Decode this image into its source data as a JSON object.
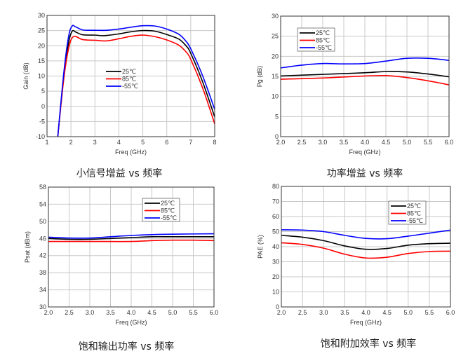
{
  "chart_data": [
    {
      "type": "line",
      "caption": "小信号增益 vs 频率",
      "xlabel": "Freq (GHz)",
      "ylabel": "Gain (dB)",
      "xlim": [
        1,
        8
      ],
      "ylim": [
        -10,
        30
      ],
      "xticks": [
        "1",
        "2",
        "3",
        "4",
        "5",
        "6",
        "7",
        "8"
      ],
      "yticks": [
        "-10",
        "-5",
        "0",
        "5",
        "10",
        "15",
        "20",
        "25",
        "30"
      ],
      "grid": true,
      "legend_box": false,
      "legend_placement": "center",
      "series": [
        {
          "name": "25℃",
          "color": "#000000",
          "points": [
            [
              1.45,
              -10
            ],
            [
              1.7,
              10
            ],
            [
              1.9,
              21
            ],
            [
              2.05,
              24.8
            ],
            [
              2.2,
              24.5
            ],
            [
              2.5,
              23.6
            ],
            [
              3,
              23.5
            ],
            [
              3.3,
              23.3
            ],
            [
              3.5,
              23.4
            ],
            [
              4,
              23.9
            ],
            [
              4.5,
              24.6
            ],
            [
              5,
              25
            ],
            [
              5.5,
              24.8
            ],
            [
              6,
              23.7
            ],
            [
              6.5,
              22.2
            ],
            [
              6.8,
              20
            ],
            [
              7,
              17.5
            ],
            [
              7.5,
              8
            ],
            [
              8,
              -3.5
            ]
          ]
        },
        {
          "name": "85℃",
          "color": "#ff0000",
          "points": [
            [
              1.45,
              -10
            ],
            [
              1.7,
              9
            ],
            [
              1.9,
              19
            ],
            [
              2.1,
              23
            ],
            [
              2.5,
              22
            ],
            [
              3,
              21.8
            ],
            [
              3.5,
              21.6
            ],
            [
              4,
              22.3
            ],
            [
              4.5,
              23.1
            ],
            [
              5,
              23.5
            ],
            [
              5.5,
              23
            ],
            [
              6,
              21.9
            ],
            [
              6.5,
              20.2
            ],
            [
              6.8,
              18
            ],
            [
              7,
              15.5
            ],
            [
              7.5,
              6
            ],
            [
              8,
              -5.8
            ]
          ]
        },
        {
          "name": "-55℃",
          "color": "#0000ff",
          "points": [
            [
              1.45,
              -10
            ],
            [
              1.7,
              11
            ],
            [
              1.9,
              23
            ],
            [
              2.05,
              26.5
            ],
            [
              2.2,
              26.2
            ],
            [
              2.5,
              25.2
            ],
            [
              3,
              25.1
            ],
            [
              3.5,
              25.1
            ],
            [
              4,
              25.5
            ],
            [
              4.5,
              26.1
            ],
            [
              5,
              26.6
            ],
            [
              5.5,
              26.5
            ],
            [
              6,
              25.5
            ],
            [
              6.5,
              23.8
            ],
            [
              6.8,
              21.5
            ],
            [
              7,
              19
            ],
            [
              7.5,
              10
            ],
            [
              8,
              -1
            ]
          ]
        }
      ]
    },
    {
      "type": "line",
      "caption": "功率增益 vs 频率",
      "xlabel": "Freq (GHz)",
      "ylabel": "Pg (dB)",
      "xlim": [
        2,
        6
      ],
      "ylim": [
        0,
        30
      ],
      "xticks": [
        "2.0",
        "2.5",
        "3.0",
        "3.5",
        "4.0",
        "4.5",
        "5.0",
        "5.5",
        "6.0"
      ],
      "yticks": [
        "0",
        "5",
        "10",
        "15",
        "20",
        "25",
        "30"
      ],
      "grid": true,
      "legend_box": true,
      "legend_placement": "top-left",
      "series": [
        {
          "name": "25℃",
          "color": "#000000",
          "points": [
            [
              2,
              15.1
            ],
            [
              3,
              15.5
            ],
            [
              4,
              15.9
            ],
            [
              4.5,
              16.2
            ],
            [
              5,
              16.1
            ],
            [
              5.5,
              15.6
            ],
            [
              6,
              14.9
            ]
          ]
        },
        {
          "name": "85℃",
          "color": "#ff0000",
          "points": [
            [
              2,
              14.3
            ],
            [
              3,
              14.6
            ],
            [
              4,
              15.1
            ],
            [
              4.5,
              15.2
            ],
            [
              5,
              14.7
            ],
            [
              5.5,
              13.9
            ],
            [
              6,
              12.9
            ]
          ]
        },
        {
          "name": "-55℃",
          "color": "#0000ff",
          "points": [
            [
              2,
              17.1
            ],
            [
              2.5,
              17.8
            ],
            [
              3,
              18.2
            ],
            [
              3.5,
              18.1
            ],
            [
              4,
              18.2
            ],
            [
              4.5,
              18.8
            ],
            [
              5,
              19.5
            ],
            [
              5.5,
              19.5
            ],
            [
              6,
              19
            ]
          ]
        }
      ]
    },
    {
      "type": "line",
      "caption": "饱和输出功率 vs 频率",
      "xlabel": "Freq (GHz)",
      "ylabel": "Psat (dBm)",
      "xlim": [
        2,
        6
      ],
      "ylim": [
        30,
        58
      ],
      "xticks": [
        "2.0",
        "2.5",
        "3.0",
        "3.5",
        "4.0",
        "4.5",
        "5.0",
        "5.5",
        "6.0"
      ],
      "yticks": [
        "30",
        "34",
        "38",
        "42",
        "46",
        "50",
        "54",
        "58"
      ],
      "grid": true,
      "legend_box": true,
      "legend_placement": "top-right",
      "series": [
        {
          "name": "25℃",
          "color": "#000000",
          "points": [
            [
              2,
              46
            ],
            [
              2.5,
              45.8
            ],
            [
              3,
              45.8
            ],
            [
              3.5,
              46
            ],
            [
              4,
              46.2
            ],
            [
              4.5,
              46.4
            ],
            [
              5,
              46.4
            ],
            [
              6,
              46.4
            ]
          ]
        },
        {
          "name": "85℃",
          "color": "#ff0000",
          "points": [
            [
              2,
              45.3
            ],
            [
              3,
              45.3
            ],
            [
              4,
              45.3
            ],
            [
              4.5,
              45.5
            ],
            [
              5,
              45.6
            ],
            [
              5.5,
              45.6
            ],
            [
              6,
              45.5
            ]
          ]
        },
        {
          "name": "-55℃",
          "color": "#0000ff",
          "points": [
            [
              2,
              46.3
            ],
            [
              2.5,
              46.1
            ],
            [
              3,
              46.1
            ],
            [
              3.5,
              46.4
            ],
            [
              4,
              46.7
            ],
            [
              4.5,
              46.9
            ],
            [
              5,
              47
            ],
            [
              6,
              47.1
            ]
          ]
        }
      ]
    },
    {
      "type": "line",
      "caption": "饱和附加效率 vs 频率",
      "xlabel": "Freq (GHz)",
      "ylabel": "PAE (%)",
      "xlim": [
        2,
        6
      ],
      "ylim": [
        0,
        80
      ],
      "xticks": [
        "2.0",
        "2.5",
        "3.0",
        "3.5",
        "4.0",
        "4.5",
        "5.0",
        "5.5",
        "6.0"
      ],
      "yticks": [
        "0",
        "10",
        "20",
        "30",
        "40",
        "50",
        "60",
        "70",
        "80"
      ],
      "grid": true,
      "legend_box": true,
      "legend_placement": "top-right",
      "series": [
        {
          "name": "25℃",
          "color": "#000000",
          "points": [
            [
              2,
              47.5
            ],
            [
              2.5,
              46.3
            ],
            [
              3,
              44
            ],
            [
              3.5,
              40.5
            ],
            [
              4,
              38.3
            ],
            [
              4.5,
              38.8
            ],
            [
              5,
              41
            ],
            [
              5.5,
              42
            ],
            [
              6,
              42.3
            ]
          ]
        },
        {
          "name": "85℃",
          "color": "#ff0000",
          "points": [
            [
              2,
              42.6
            ],
            [
              2.5,
              41.5
            ],
            [
              3,
              39
            ],
            [
              3.5,
              35
            ],
            [
              4,
              32.5
            ],
            [
              4.5,
              33
            ],
            [
              5,
              35.5
            ],
            [
              5.5,
              36.8
            ],
            [
              6,
              37
            ]
          ]
        },
        {
          "name": "-55℃",
          "color": "#0000ff",
          "points": [
            [
              2,
              51.2
            ],
            [
              2.5,
              51
            ],
            [
              3,
              50
            ],
            [
              3.5,
              47.5
            ],
            [
              4,
              45.5
            ],
            [
              4.5,
              45.3
            ],
            [
              5,
              47
            ],
            [
              5.5,
              49
            ],
            [
              6,
              51
            ]
          ]
        }
      ]
    }
  ]
}
